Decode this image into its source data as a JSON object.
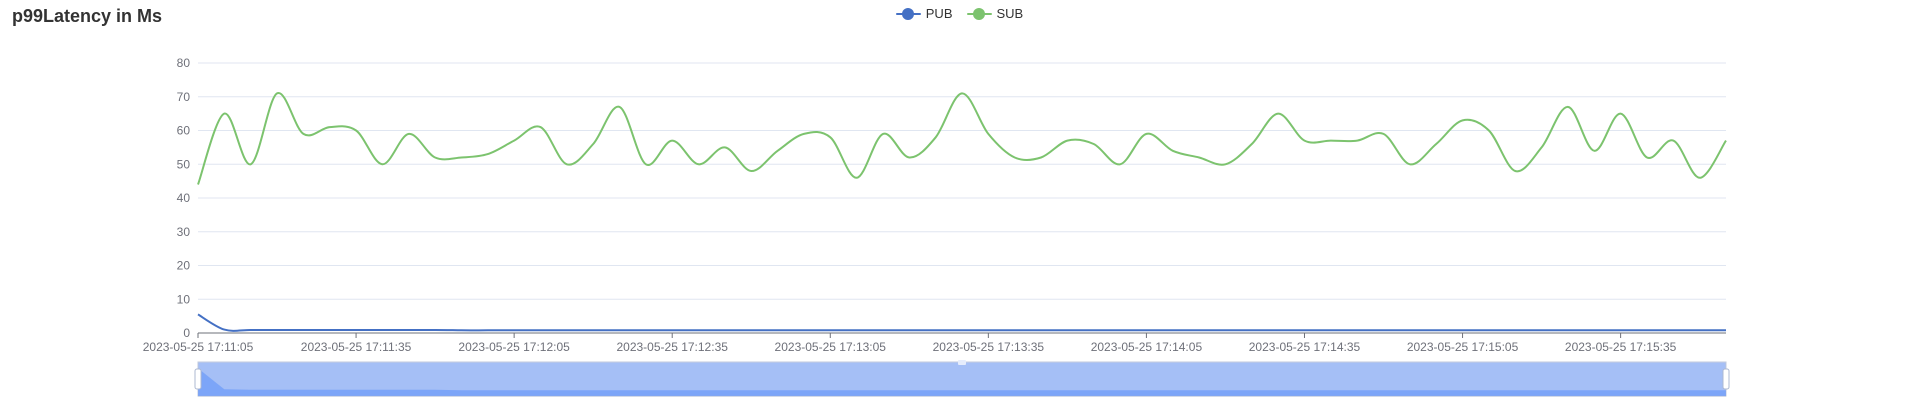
{
  "chart_data": {
    "type": "line",
    "title": "p99Latency in Ms",
    "xlabel": "",
    "ylabel": "",
    "ylim": [
      0,
      80
    ],
    "yticks": [
      0,
      10,
      20,
      30,
      40,
      50,
      60,
      70,
      80
    ],
    "grid": true,
    "legend_position": "top-center",
    "x_tick_labels": [
      "2023-05-25 17:11:05",
      "2023-05-25 17:11:35",
      "2023-05-25 17:12:05",
      "2023-05-25 17:12:35",
      "2023-05-25 17:13:05",
      "2023-05-25 17:13:35",
      "2023-05-25 17:14:05",
      "2023-05-25 17:14:35",
      "2023-05-25 17:15:05",
      "2023-05-25 17:15:35"
    ],
    "series": [
      {
        "name": "PUB",
        "color": "#4470c4",
        "values": [
          5.5,
          1.0,
          0.9,
          0.9,
          0.9,
          0.9,
          0.9,
          0.9,
          0.9,
          0.9,
          0.8,
          0.8,
          0.8,
          0.8,
          0.8,
          0.8,
          0.8,
          0.8,
          0.8,
          0.8,
          0.8,
          0.8,
          0.8,
          0.8,
          0.8,
          0.8,
          0.8,
          0.8,
          0.8,
          0.8,
          0.8,
          0.8,
          0.8,
          0.8,
          0.8,
          0.8,
          0.8,
          0.8,
          0.8,
          0.8,
          0.8,
          0.8,
          0.8,
          0.8,
          0.8,
          0.8,
          0.8,
          0.8,
          0.8,
          0.8,
          0.8,
          0.8,
          0.8,
          0.8,
          0.8,
          0.8,
          0.8,
          0.8,
          0.8
        ]
      },
      {
        "name": "SUB",
        "color": "#7cc36e",
        "values": [
          44,
          65,
          50,
          71,
          59,
          61,
          60,
          50,
          59,
          52,
          52,
          53,
          57,
          61,
          50,
          56,
          67,
          50,
          57,
          50,
          55,
          48,
          54,
          59,
          58,
          46,
          59,
          52,
          58,
          71,
          59,
          52,
          52,
          57,
          56,
          50,
          59,
          54,
          52,
          50,
          56,
          65,
          57,
          57,
          57,
          59,
          50,
          56,
          63,
          60,
          48,
          55,
          67,
          54,
          65,
          52,
          57,
          46,
          57
        ]
      }
    ]
  }
}
